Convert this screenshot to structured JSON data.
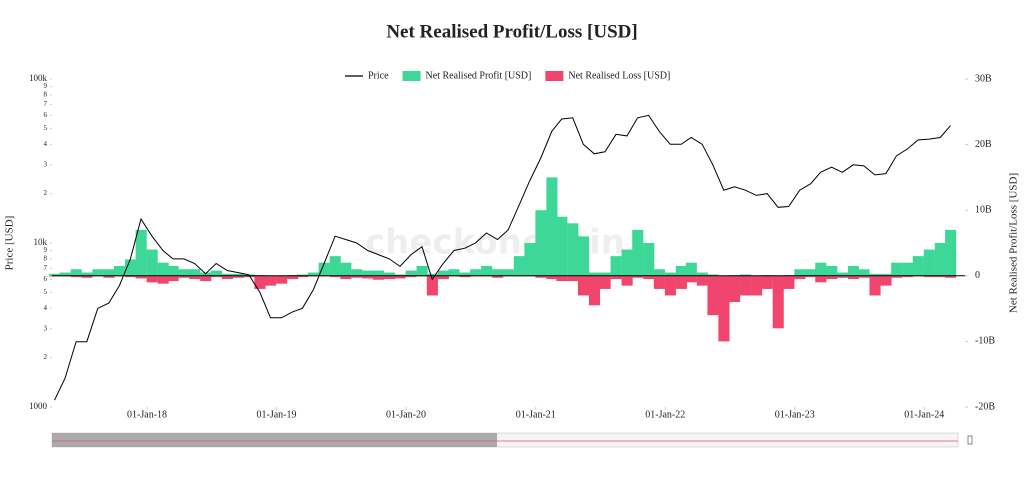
{
  "chart_data": {
    "type": "dual-axis-area-line",
    "title": "Net Realised Profit/Loss [USD]",
    "watermark": "checkonchain",
    "ylabel": "Price [USD]",
    "y2label": "Net Realised Profit/Loss [USD]",
    "log_y": true,
    "legend": "top",
    "x": [
      "2017-04-15",
      "2017-05-15",
      "2017-06-15",
      "2017-07-15",
      "2017-08-15",
      "2017-09-15",
      "2017-10-15",
      "2017-11-15",
      "2017-12-15",
      "2018-01-15",
      "2018-02-15",
      "2018-03-15",
      "2018-04-15",
      "2018-05-15",
      "2018-06-15",
      "2018-07-15",
      "2018-08-15",
      "2018-09-15",
      "2018-10-15",
      "2018-11-15",
      "2018-12-15",
      "2019-01-15",
      "2019-02-15",
      "2019-03-15",
      "2019-04-15",
      "2019-05-15",
      "2019-06-15",
      "2019-07-15",
      "2019-08-15",
      "2019-09-15",
      "2019-10-15",
      "2019-11-15",
      "2019-12-15",
      "2020-01-15",
      "2020-02-15",
      "2020-03-15",
      "2020-04-15",
      "2020-05-15",
      "2020-06-15",
      "2020-07-15",
      "2020-08-15",
      "2020-09-15",
      "2020-10-15",
      "2020-11-15",
      "2020-12-15",
      "2021-01-15",
      "2021-02-15",
      "2021-03-15",
      "2021-04-15",
      "2021-05-15",
      "2021-06-15",
      "2021-07-15",
      "2021-08-15",
      "2021-09-15",
      "2021-10-15",
      "2021-11-15",
      "2021-12-15",
      "2022-01-15",
      "2022-02-15",
      "2022-03-15",
      "2022-04-15",
      "2022-05-15",
      "2022-06-15",
      "2022-07-15",
      "2022-08-15",
      "2022-09-15",
      "2022-10-15",
      "2022-11-15",
      "2022-12-15",
      "2023-01-15",
      "2023-02-15",
      "2023-03-15",
      "2023-04-15",
      "2023-05-15",
      "2023-06-15",
      "2023-07-15",
      "2023-08-15",
      "2023-09-15",
      "2023-10-15",
      "2023-11-15",
      "2023-12-15",
      "2024-01-15",
      "2024-02-15",
      "2024-03-15"
    ],
    "series": [
      {
        "name": "Price",
        "color": "#000000",
        "axis": "y",
        "values": [
          1100,
          1500,
          2500,
          2500,
          4000,
          4300,
          5500,
          8000,
          14000,
          11000,
          9000,
          8000,
          8000,
          7500,
          6500,
          7500,
          6800,
          6600,
          6400,
          5000,
          3500,
          3500,
          3800,
          4000,
          5200,
          7500,
          11000,
          10500,
          10000,
          9000,
          8500,
          8000,
          7200,
          8500,
          9500,
          6000,
          7500,
          9000,
          9300,
          10000,
          11500,
          10500,
          12000,
          17000,
          24000,
          33000,
          48000,
          57000,
          58000,
          40000,
          35000,
          36000,
          46000,
          45000,
          58000,
          60000,
          48000,
          40000,
          40000,
          44000,
          40000,
          30000,
          21000,
          22000,
          21000,
          19500,
          20000,
          16500,
          16700,
          21000,
          23000,
          27000,
          29000,
          27000,
          30000,
          29500,
          26000,
          26500,
          34000,
          37500,
          42500,
          43000,
          44000,
          52000
        ]
      },
      {
        "name": "Net Realised Profit [USD]",
        "color": "#3dd897",
        "axis": "y2",
        "values": [
          300000000.0,
          500000000.0,
          1000000000.0,
          500000000.0,
          1000000000.0,
          1000000000.0,
          1500000000.0,
          2500000000.0,
          7000000000.0,
          4000000000.0,
          2000000000.0,
          1500000000.0,
          1000000000.0,
          1000000000.0,
          500000000.0,
          800000000.0,
          300000000.0,
          300000000.0,
          200000000.0,
          100000000.0,
          0,
          0,
          100000000.0,
          200000000.0,
          500000000.0,
          2000000000.0,
          3000000000.0,
          2000000000.0,
          1000000000.0,
          800000000.0,
          800000000.0,
          500000000.0,
          200000000.0,
          800000000.0,
          1500000000.0,
          300000000.0,
          800000000.0,
          1000000000.0,
          500000000.0,
          1000000000.0,
          1500000000.0,
          1000000000.0,
          1000000000.0,
          3000000000.0,
          5000000000.0,
          10000000000.0,
          15000000000.0,
          9000000000.0,
          8000000000.0,
          6000000000.0,
          500000000.0,
          500000000.0,
          3000000000.0,
          4000000000.0,
          7000000000.0,
          5000000000.0,
          1000000000.0,
          500000000.0,
          1500000000.0,
          2000000000.0,
          500000000.0,
          200000000.0,
          0,
          100000000.0,
          200000000.0,
          0,
          100000000.0,
          0,
          100000000.0,
          1000000000.0,
          1000000000.0,
          2000000000.0,
          1500000000.0,
          500000000.0,
          1500000000.0,
          1000000000.0,
          300000000.0,
          300000000.0,
          2000000000.0,
          2000000000.0,
          3000000000.0,
          4000000000.0,
          5000000000.0,
          7000000000.0
        ]
      },
      {
        "name": "Net Realised Loss [USD]",
        "color": "#f0466e",
        "axis": "y2",
        "values": [
          -100000000.0,
          -100000000.0,
          -200000000.0,
          -300000000.0,
          -100000000.0,
          -300000000.0,
          -100000000.0,
          -200000000.0,
          -400000000.0,
          -1000000000.0,
          -1200000000.0,
          -800000000.0,
          -300000000.0,
          -500000000.0,
          -800000000.0,
          -200000000.0,
          -500000000.0,
          -300000000.0,
          -200000000.0,
          -2000000000.0,
          -1500000000.0,
          -1200000000.0,
          -500000000.0,
          -200000000.0,
          -100000000.0,
          -100000000.0,
          -200000000.0,
          -500000000.0,
          -300000000.0,
          -400000000.0,
          -600000000.0,
          -500000000.0,
          -400000000.0,
          -200000000.0,
          -100000000.0,
          -3000000000.0,
          -500000000.0,
          -100000000.0,
          -200000000.0,
          -100000000.0,
          -100000000.0,
          -300000000.0,
          -100000000.0,
          -100000000.0,
          -100000000.0,
          -300000000.0,
          -500000000.0,
          -800000000.0,
          -800000000.0,
          -3000000000.0,
          -4500000000.0,
          -2000000000.0,
          -500000000.0,
          -1500000000.0,
          -300000000.0,
          -500000000.0,
          -2000000000.0,
          -3000000000.0,
          -2000000000.0,
          -1000000000.0,
          -1500000000.0,
          -6000000000.0,
          -10000000000.0,
          -4000000000.0,
          -3000000000.0,
          -3000000000.0,
          -2000000000.0,
          -8000000000.0,
          -2000000000.0,
          -500000000.0,
          -200000000.0,
          -1000000000.0,
          -500000000.0,
          -300000000.0,
          -500000000.0,
          -300000000.0,
          -3000000000.0,
          -1500000000.0,
          -300000000.0,
          -200000000.0,
          -100000000.0,
          -200000000.0,
          -200000000.0,
          -300000000.0
        ]
      }
    ],
    "xlim": [
      "2017-04-08",
      "2024-04-25"
    ],
    "xticks": [
      {
        "value": "2018-01-01",
        "label": "01-Jan-18"
      },
      {
        "value": "2019-01-01",
        "label": "01-Jan-19"
      },
      {
        "value": "2020-01-01",
        "label": "01-Jan-20"
      },
      {
        "value": "2021-01-01",
        "label": "01-Jan-21"
      },
      {
        "value": "2022-01-01",
        "label": "01-Jan-22"
      },
      {
        "value": "2023-01-01",
        "label": "01-Jan-23"
      },
      {
        "value": "2024-01-01",
        "label": "01-Jan-24"
      }
    ],
    "ylim": [
      1000,
      100000
    ],
    "yticks": [
      1000,
      {
        "value": 2000,
        "label": "2"
      },
      {
        "value": 3000,
        "label": "3"
      },
      {
        "value": 4000,
        "label": "4"
      },
      {
        "value": 5000,
        "label": "5"
      },
      {
        "value": 6000,
        "label": "6"
      },
      {
        "value": 7000,
        "label": "7"
      },
      {
        "value": 8000,
        "label": "8"
      },
      {
        "value": 9000,
        "label": "9"
      },
      {
        "value": 10000,
        "label": "10k"
      },
      {
        "value": 20000,
        "label": "2"
      },
      {
        "value": 30000,
        "label": "3"
      },
      {
        "value": 40000,
        "label": "4"
      },
      {
        "value": 50000,
        "label": "5"
      },
      {
        "value": 60000,
        "label": "6"
      },
      {
        "value": 70000,
        "label": "7"
      },
      {
        "value": 80000,
        "label": "8"
      },
      {
        "value": 90000,
        "label": "9"
      },
      {
        "value": 100000,
        "label": "100k"
      }
    ],
    "y2lim": [
      -20000000000.0,
      30000000000.0
    ],
    "y2ticks": [
      {
        "value": 30000000000.0,
        "label": "30B"
      },
      {
        "value": 20000000000.0,
        "label": "20B"
      },
      {
        "value": 10000000000.0,
        "label": "10B"
      },
      0,
      {
        "value": -10000000000.0,
        "label": "-10B"
      },
      {
        "value": -20000000000.0,
        "label": "-20B"
      }
    ]
  }
}
